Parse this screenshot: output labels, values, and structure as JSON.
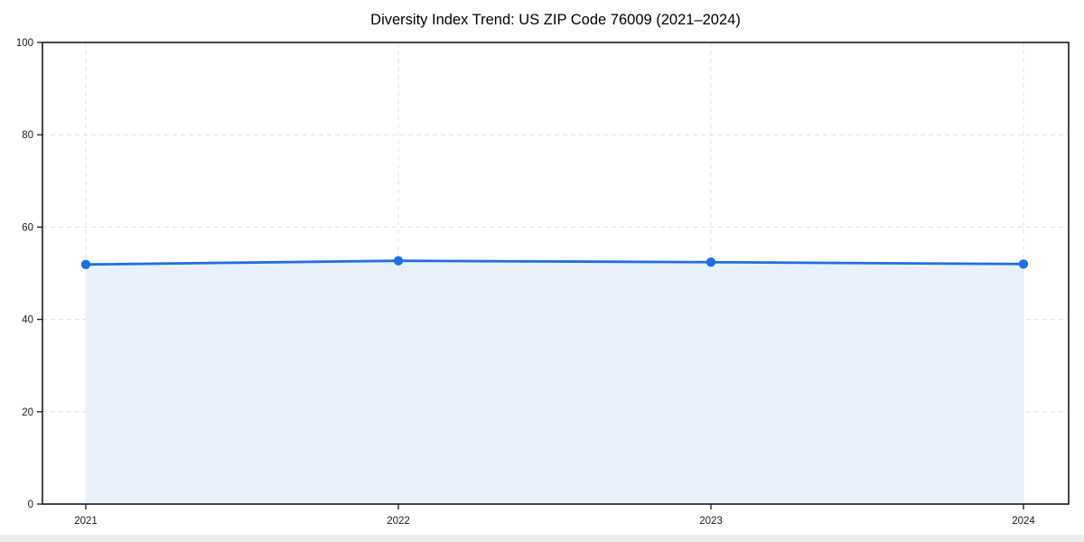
{
  "chart_data": {
    "type": "area",
    "title": "Diversity Index Trend: US ZIP Code 76009 (2021–2024)",
    "x": [
      2021,
      2022,
      2023,
      2024
    ],
    "series": [
      {
        "name": "Diversity Index",
        "values": [
          51.9,
          52.7,
          52.4,
          52.0
        ]
      }
    ],
    "xlabel": "",
    "ylabel": "",
    "ylim": [
      0,
      100
    ],
    "yticks": [
      0,
      20,
      40,
      60,
      80,
      100
    ],
    "grid": true,
    "grid_style": "dashed",
    "legend": false,
    "colors": {
      "line": "#1f6fe0",
      "marker": "#1f6fe0",
      "fill": "#e8f0fb",
      "grid": "#e0e0e0",
      "axis": "#1a1a1a",
      "tick_label": "#1a1a1a",
      "background": "#ffffff"
    }
  }
}
